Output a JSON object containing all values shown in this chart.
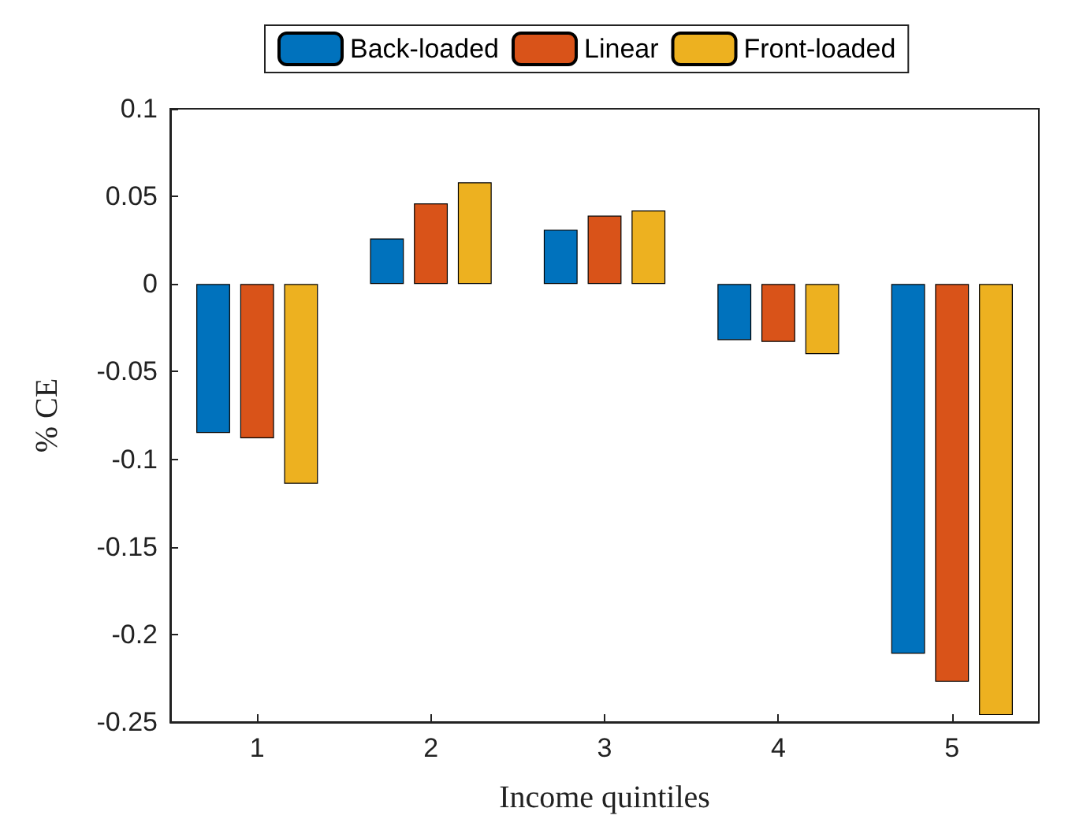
{
  "chart_data": {
    "type": "bar",
    "xlabel": "Income quintiles",
    "ylabel": "% CE",
    "categories": [
      "1",
      "2",
      "3",
      "4",
      "5"
    ],
    "series": [
      {
        "name": "Back-loaded",
        "color": "#0072bd",
        "values": [
          -0.085,
          0.026,
          0.031,
          -0.032,
          -0.211
        ]
      },
      {
        "name": "Linear",
        "color": "#d95319",
        "values": [
          -0.088,
          0.046,
          0.039,
          -0.033,
          -0.227
        ]
      },
      {
        "name": "Front-loaded",
        "color": "#edb120",
        "values": [
          -0.114,
          0.058,
          0.042,
          -0.04,
          -0.246
        ]
      }
    ],
    "ylim": [
      -0.25,
      0.1
    ],
    "yticks": [
      -0.25,
      -0.2,
      -0.15,
      -0.1,
      -0.05,
      0,
      0.05,
      0.1
    ],
    "grid": false,
    "legend": "top"
  }
}
